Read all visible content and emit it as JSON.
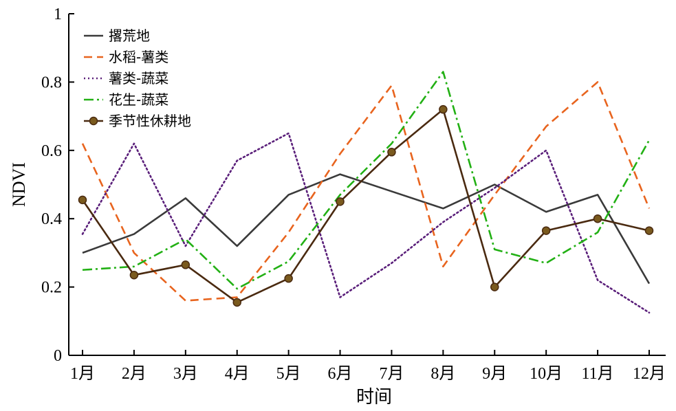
{
  "chart_data": {
    "type": "line",
    "xlabel": "时间",
    "ylabel": "NDVI",
    "ylim": [
      0,
      1
    ],
    "y_ticks": [
      "0",
      "0.2",
      "0.4",
      "0.6",
      "0.8",
      "1"
    ],
    "categories": [
      "1月",
      "2月",
      "3月",
      "4月",
      "5月",
      "6月",
      "7月",
      "8月",
      "9月",
      "10月",
      "11月",
      "12月"
    ],
    "grid": false,
    "legend_position": "top-left",
    "series": [
      {
        "name": "撂荒地",
        "color": "#3a3a3a",
        "style": "solid",
        "marker": "none",
        "values": [
          0.3,
          0.355,
          0.46,
          0.32,
          0.47,
          0.53,
          0.48,
          0.43,
          0.5,
          0.42,
          0.47,
          0.21
        ]
      },
      {
        "name": "水稻-薯类",
        "color": "#e8641e",
        "style": "dashed",
        "marker": "none",
        "values": [
          0.62,
          0.3,
          0.16,
          0.17,
          0.36,
          0.59,
          0.79,
          0.26,
          0.47,
          0.67,
          0.8,
          0.43
        ]
      },
      {
        "name": "薯类-蔬菜",
        "color": "#5a1f7a",
        "style": "dotted",
        "marker": "none",
        "values": [
          0.355,
          0.62,
          0.32,
          0.57,
          0.65,
          0.17,
          0.27,
          0.39,
          0.49,
          0.6,
          0.22,
          0.125
        ]
      },
      {
        "name": "花生-蔬菜",
        "color": "#22b014",
        "style": "dashdot",
        "marker": "none",
        "values": [
          0.25,
          0.26,
          0.34,
          0.195,
          0.275,
          0.47,
          0.62,
          0.83,
          0.31,
          0.27,
          0.36,
          0.63
        ]
      },
      {
        "name": "季节性休耕地",
        "color": "#4a2a10",
        "marker_color": "#7a5a1e",
        "style": "solid",
        "marker": "circle",
        "values": [
          0.455,
          0.235,
          0.265,
          0.155,
          0.225,
          0.45,
          0.595,
          0.72,
          0.2,
          0.365,
          0.4,
          0.365
        ]
      }
    ]
  }
}
